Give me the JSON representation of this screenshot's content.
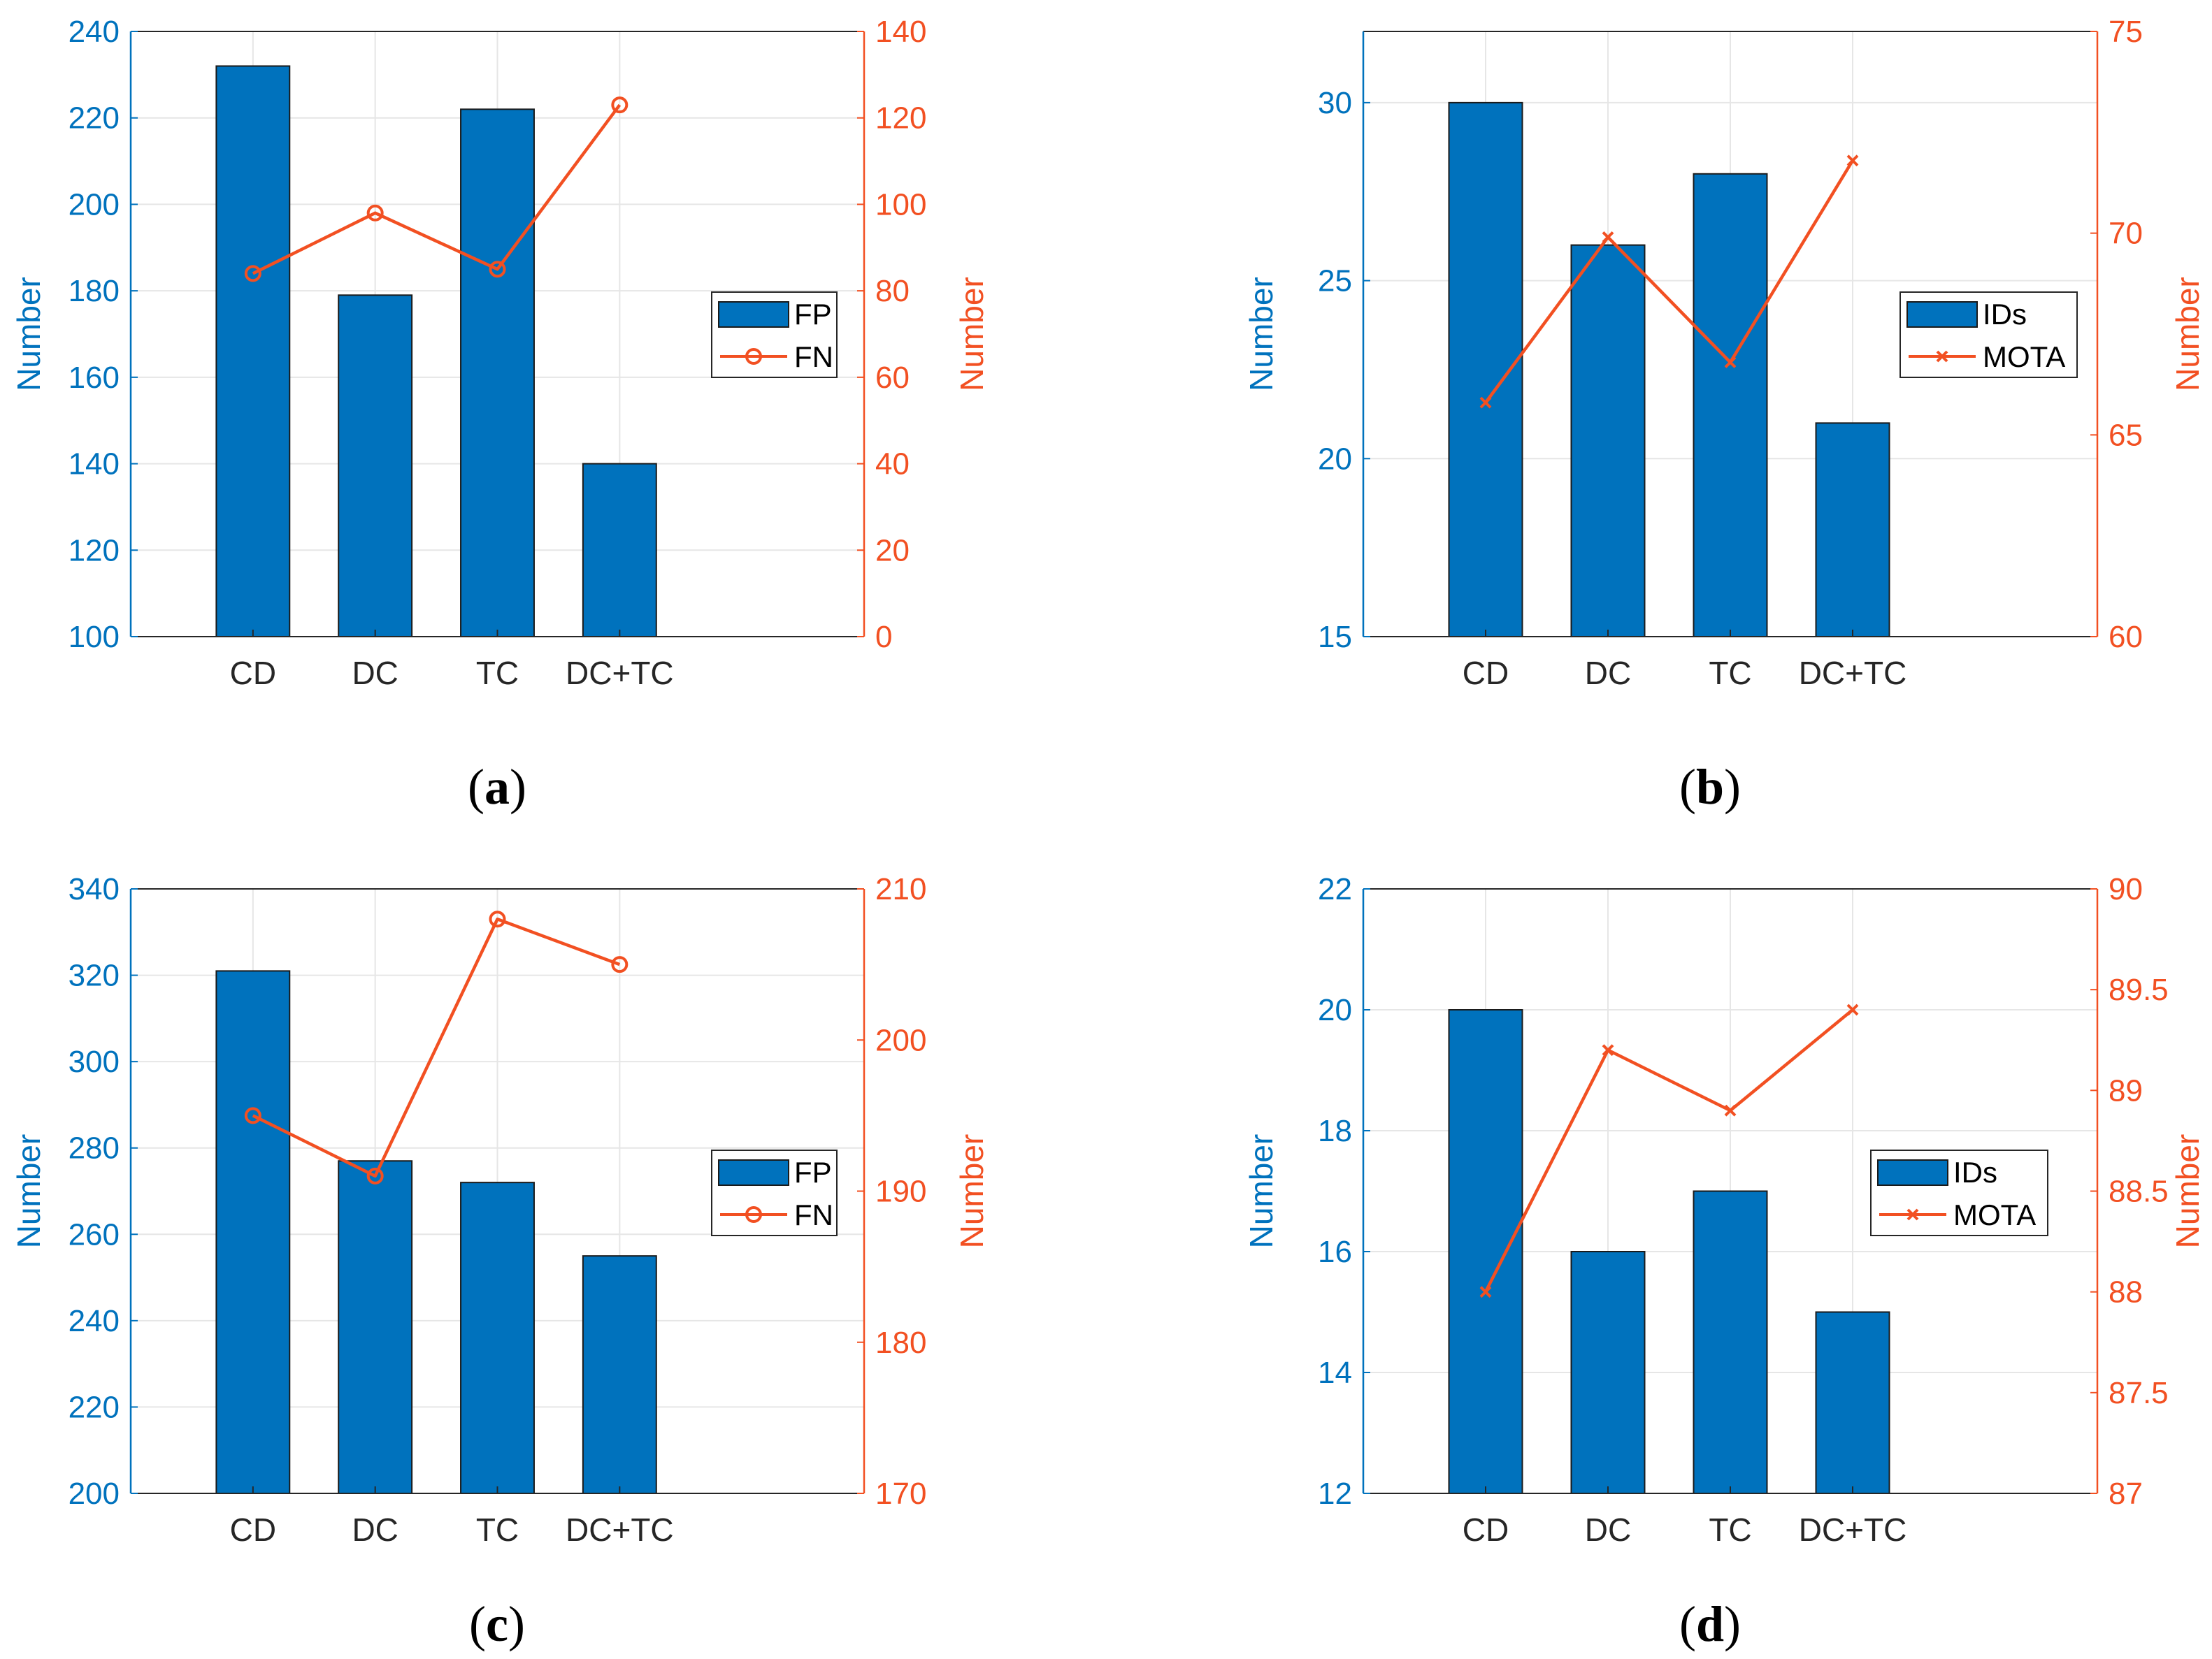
{
  "figure": {
    "colors": {
      "bar": "#0072BD",
      "line": "#F25022",
      "left_axis": "#0072BD",
      "right_axis": "#F25022",
      "grid": "#E6E6E6",
      "frame": "#262626"
    }
  },
  "chart_data": [
    {
      "id": "a",
      "caption": "a",
      "type": "bar",
      "categories": [
        "CD",
        "DC",
        "TC",
        "DC+TC"
      ],
      "bar_series": {
        "name": "FP",
        "values": [
          232,
          179,
          222,
          140
        ]
      },
      "line_series": {
        "name": "FN",
        "values": [
          84,
          98,
          85,
          123
        ],
        "marker": "circle"
      },
      "left_axis": {
        "label": "Number",
        "ylim": [
          100,
          240
        ],
        "ticks": [
          100,
          120,
          140,
          160,
          180,
          200,
          220,
          240
        ]
      },
      "right_axis": {
        "label": "Number",
        "ylim": [
          0,
          140
        ],
        "ticks": [
          0,
          20,
          40,
          60,
          80,
          100,
          120,
          140
        ]
      },
      "legend": "center-right"
    },
    {
      "id": "b",
      "caption": "b",
      "type": "bar",
      "categories": [
        "CD",
        "DC",
        "TC",
        "DC+TC"
      ],
      "bar_series": {
        "name": "IDs",
        "values": [
          30,
          26,
          28,
          21
        ]
      },
      "line_series": {
        "name": "MOTA",
        "values": [
          65.8,
          69.9,
          66.8,
          71.8
        ],
        "marker": "x"
      },
      "left_axis": {
        "label": "Number",
        "ylim": [
          15,
          32
        ],
        "ticks": [
          15,
          20,
          25,
          30
        ]
      },
      "right_axis": {
        "label": "Number",
        "ylim": [
          60,
          75
        ],
        "ticks": [
          60,
          65,
          70,
          75
        ]
      },
      "legend": "center-right"
    },
    {
      "id": "c",
      "caption": "c",
      "type": "bar",
      "categories": [
        "CD",
        "DC",
        "TC",
        "DC+TC"
      ],
      "bar_series": {
        "name": "FP",
        "values": [
          321,
          277,
          272,
          255
        ]
      },
      "line_series": {
        "name": "FN",
        "values": [
          195,
          191,
          208,
          205
        ],
        "marker": "circle"
      },
      "left_axis": {
        "label": "Number",
        "ylim": [
          200,
          340
        ],
        "ticks": [
          200,
          220,
          240,
          260,
          280,
          300,
          320,
          340
        ]
      },
      "right_axis": {
        "label": "Number",
        "ylim": [
          170,
          210
        ],
        "ticks": [
          170,
          180,
          190,
          200,
          210
        ]
      },
      "legend": "center-right"
    },
    {
      "id": "d",
      "caption": "d",
      "type": "bar",
      "categories": [
        "CD",
        "DC",
        "TC",
        "DC+TC"
      ],
      "bar_series": {
        "name": "IDs",
        "values": [
          20,
          16,
          17,
          15
        ]
      },
      "line_series": {
        "name": "MOTA",
        "values": [
          88.0,
          89.2,
          88.9,
          89.4
        ],
        "marker": "x"
      },
      "left_axis": {
        "label": "Number",
        "ylim": [
          12,
          22
        ],
        "ticks": [
          12,
          14,
          16,
          18,
          20,
          22
        ]
      },
      "right_axis": {
        "label": "Number",
        "ylim": [
          87,
          90
        ],
        "ticks": [
          87,
          87.5,
          88,
          88.5,
          89,
          89.5,
          90
        ]
      },
      "legend": "center-right"
    }
  ]
}
